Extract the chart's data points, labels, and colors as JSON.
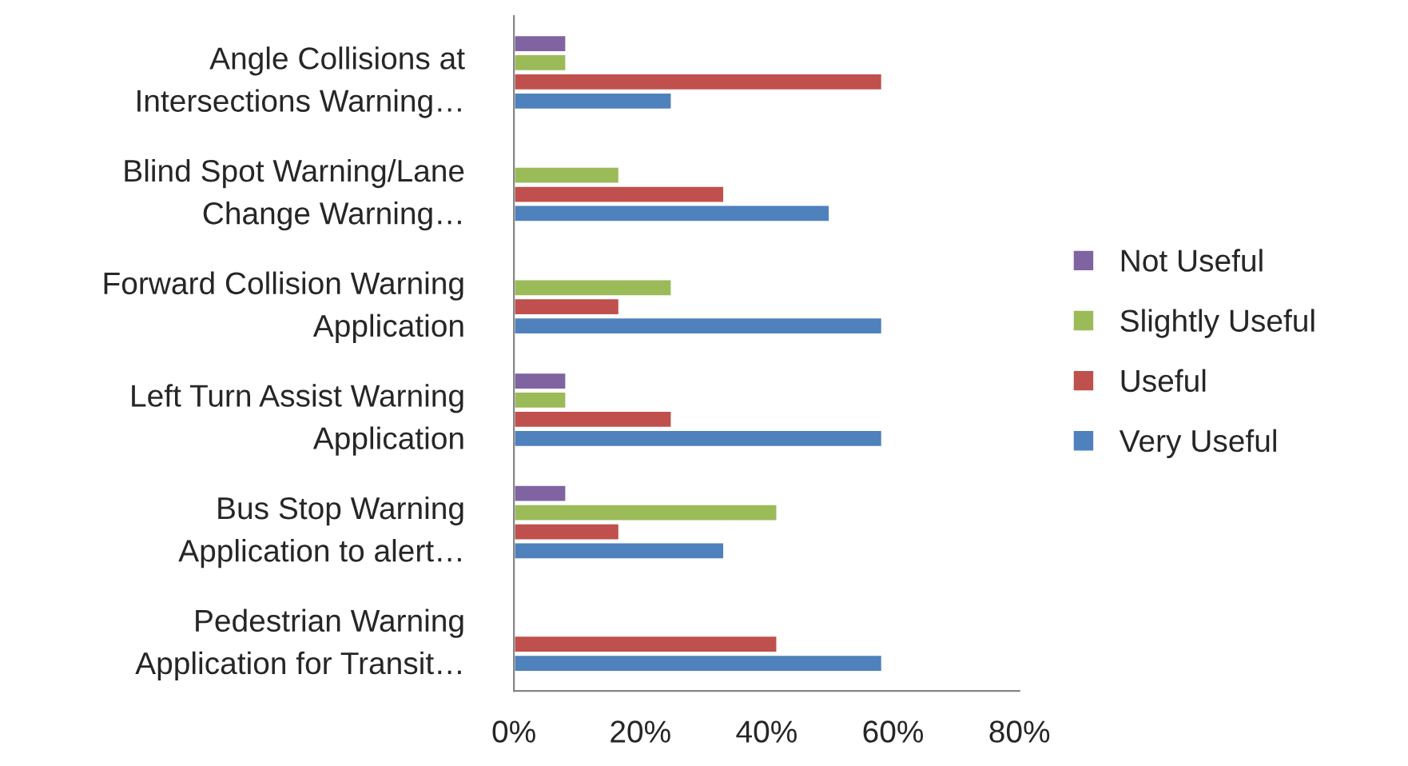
{
  "chart_data": {
    "type": "bar",
    "orientation": "horizontal",
    "categories": [
      "Angle Collisions at\nIntersections Warning…",
      "Blind Spot Warning/Lane\nChange Warning…",
      "Forward Collision Warning\nApplication",
      "Left Turn Assist Warning\nApplication",
      "Bus Stop Warning\nApplication to alert…",
      "Pedestrian Warning\nApplication for Transit…"
    ],
    "series": [
      {
        "name": "Not Useful",
        "color": "#8064a2",
        "values": [
          8.3,
          null,
          null,
          8.3,
          8.3,
          null
        ]
      },
      {
        "name": "Slightly Useful",
        "color": "#9bbb59",
        "values": [
          8.3,
          16.7,
          25,
          8.3,
          41.7,
          null
        ]
      },
      {
        "name": "Useful",
        "color": "#c0504d",
        "values": [
          58.3,
          33.3,
          16.7,
          25,
          16.7,
          41.7
        ]
      },
      {
        "name": "Very Useful",
        "color": "#4f81bd",
        "values": [
          25,
          50,
          58.3,
          58.3,
          33.3,
          58.3
        ]
      }
    ],
    "xlim": [
      0,
      80
    ],
    "xticks": [
      {
        "value": 0,
        "label": "0%"
      },
      {
        "value": 20,
        "label": "20%"
      },
      {
        "value": 40,
        "label": "40%"
      },
      {
        "value": 60,
        "label": "60%"
      },
      {
        "value": 80,
        "label": "80%"
      }
    ],
    "grid": false,
    "legend": "right"
  }
}
